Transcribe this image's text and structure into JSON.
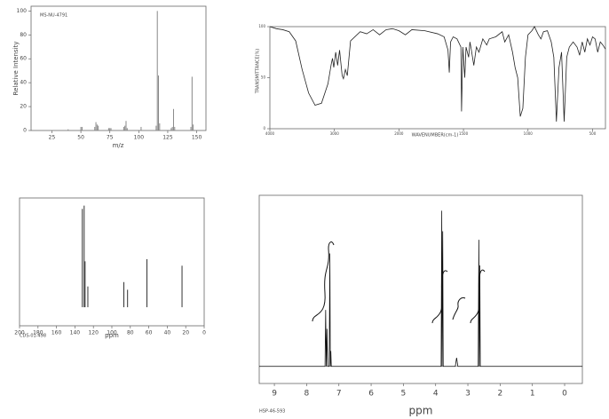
{
  "chart_data": [
    {
      "type": "bar",
      "code": "MS-NU-4791",
      "xlabel": "m/z",
      "ylabel": "Relative Intensity",
      "color": "#888888",
      "x": [
        39,
        50,
        51,
        62,
        63,
        64,
        65,
        74,
        75,
        76,
        87,
        88,
        89,
        90,
        102,
        115,
        116,
        117,
        118,
        128,
        129,
        130,
        131,
        145,
        146,
        147
      ],
      "values": [
        1,
        3,
        3,
        3,
        7,
        5,
        4,
        2,
        2,
        2,
        3,
        4,
        8,
        2,
        3,
        4,
        100,
        46,
        6,
        2,
        3,
        18,
        3,
        3,
        45,
        5
      ],
      "xlim": [
        7,
        158
      ],
      "xticks": [
        25,
        50,
        75,
        100,
        125,
        150
      ],
      "ylim": [
        0,
        104
      ],
      "yticks": [
        0,
        20,
        40,
        60,
        80,
        100
      ]
    },
    {
      "type": "line",
      "xlabel": "WAVENUMBER(cm-1)",
      "ylabel": "TRANSMITTANCE(%)",
      "color": "#222222",
      "uniform_tick_spacing": true,
      "x": [
        4000,
        3900,
        3800,
        3700,
        3600,
        3500,
        3400,
        3300,
        3200,
        3100,
        3050,
        3030,
        3010,
        2980,
        2950,
        2920,
        2880,
        2860,
        2830,
        2800,
        2750,
        2600,
        2500,
        2400,
        2300,
        2200,
        2100,
        2000,
        1950,
        1900,
        1800,
        1700,
        1650,
        1620,
        1610,
        1600,
        1580,
        1550,
        1520,
        1515,
        1505,
        1490,
        1480,
        1460,
        1450,
        1440,
        1420,
        1400,
        1380,
        1350,
        1320,
        1300,
        1250,
        1200,
        1180,
        1150,
        1120,
        1100,
        1080,
        1060,
        1040,
        1020,
        1000,
        970,
        950,
        920,
        900,
        880,
        850,
        820,
        800,
        780,
        760,
        740,
        720,
        700,
        680,
        650,
        620,
        600,
        580,
        560,
        540,
        520,
        500,
        480,
        460,
        440,
        420,
        400
      ],
      "values": [
        100,
        98,
        97,
        95,
        86,
        58,
        35,
        23,
        25,
        44,
        63,
        69,
        60,
        75,
        62,
        77,
        52,
        49,
        58,
        52,
        86,
        95,
        93,
        97,
        92,
        97,
        98,
        96,
        92,
        97,
        96,
        93,
        90,
        77,
        55,
        85,
        90,
        88,
        80,
        17,
        80,
        50,
        80,
        70,
        85,
        78,
        62,
        80,
        75,
        88,
        82,
        88,
        90,
        95,
        85,
        92,
        75,
        60,
        50,
        12,
        20,
        70,
        92,
        96,
        100,
        92,
        88,
        95,
        96,
        85,
        70,
        7,
        60,
        75,
        7,
        70,
        80,
        85,
        80,
        72,
        85,
        75,
        88,
        82,
        90,
        88,
        75,
        85,
        82,
        78
      ],
      "xlim": [
        4000,
        400
      ],
      "xticks": [
        4000,
        3000,
        2000,
        1500,
        1000,
        500
      ],
      "ylim": [
        0,
        100
      ],
      "yticks": [
        0,
        50,
        100
      ]
    },
    {
      "type": "bar",
      "code": "CDS-01-498",
      "xlabel": "ppm",
      "color": "#333333",
      "x": [
        132,
        130,
        129,
        126,
        87,
        83,
        62,
        24
      ],
      "values": [
        90,
        93,
        42,
        19,
        23,
        16,
        44,
        38
      ],
      "xlim": [
        200,
        0
      ],
      "xticks": [
        200,
        180,
        160,
        140,
        120,
        100,
        80,
        60,
        40,
        20,
        0
      ],
      "ylim": [
        -17,
        100
      ]
    },
    {
      "type": "line",
      "code": "HSP-46-593",
      "xlabel": "ppm",
      "color": "#111111",
      "x": [
        9.47,
        7.43,
        7.41,
        7.39,
        7.37,
        7.35,
        7.3,
        7.28,
        7.265,
        7.25,
        7.235,
        3.83,
        3.81,
        3.8,
        3.78,
        3.765,
        3.39,
        3.35,
        3.31,
        2.68,
        2.66,
        2.645,
        2.63,
        2.615,
        -0.55
      ],
      "values": [
        0,
        0,
        33,
        0,
        22,
        0,
        0,
        66,
        0,
        9,
        0,
        0,
        91,
        0,
        79,
        0,
        0,
        5,
        0,
        0,
        74,
        0,
        59,
        0,
        0
      ],
      "xlim": [
        9.47,
        -0.55
      ],
      "xticks": [
        9,
        8,
        7,
        6,
        5,
        4,
        3,
        2,
        1,
        0
      ],
      "ylim": [
        -10,
        100
      ]
    }
  ]
}
